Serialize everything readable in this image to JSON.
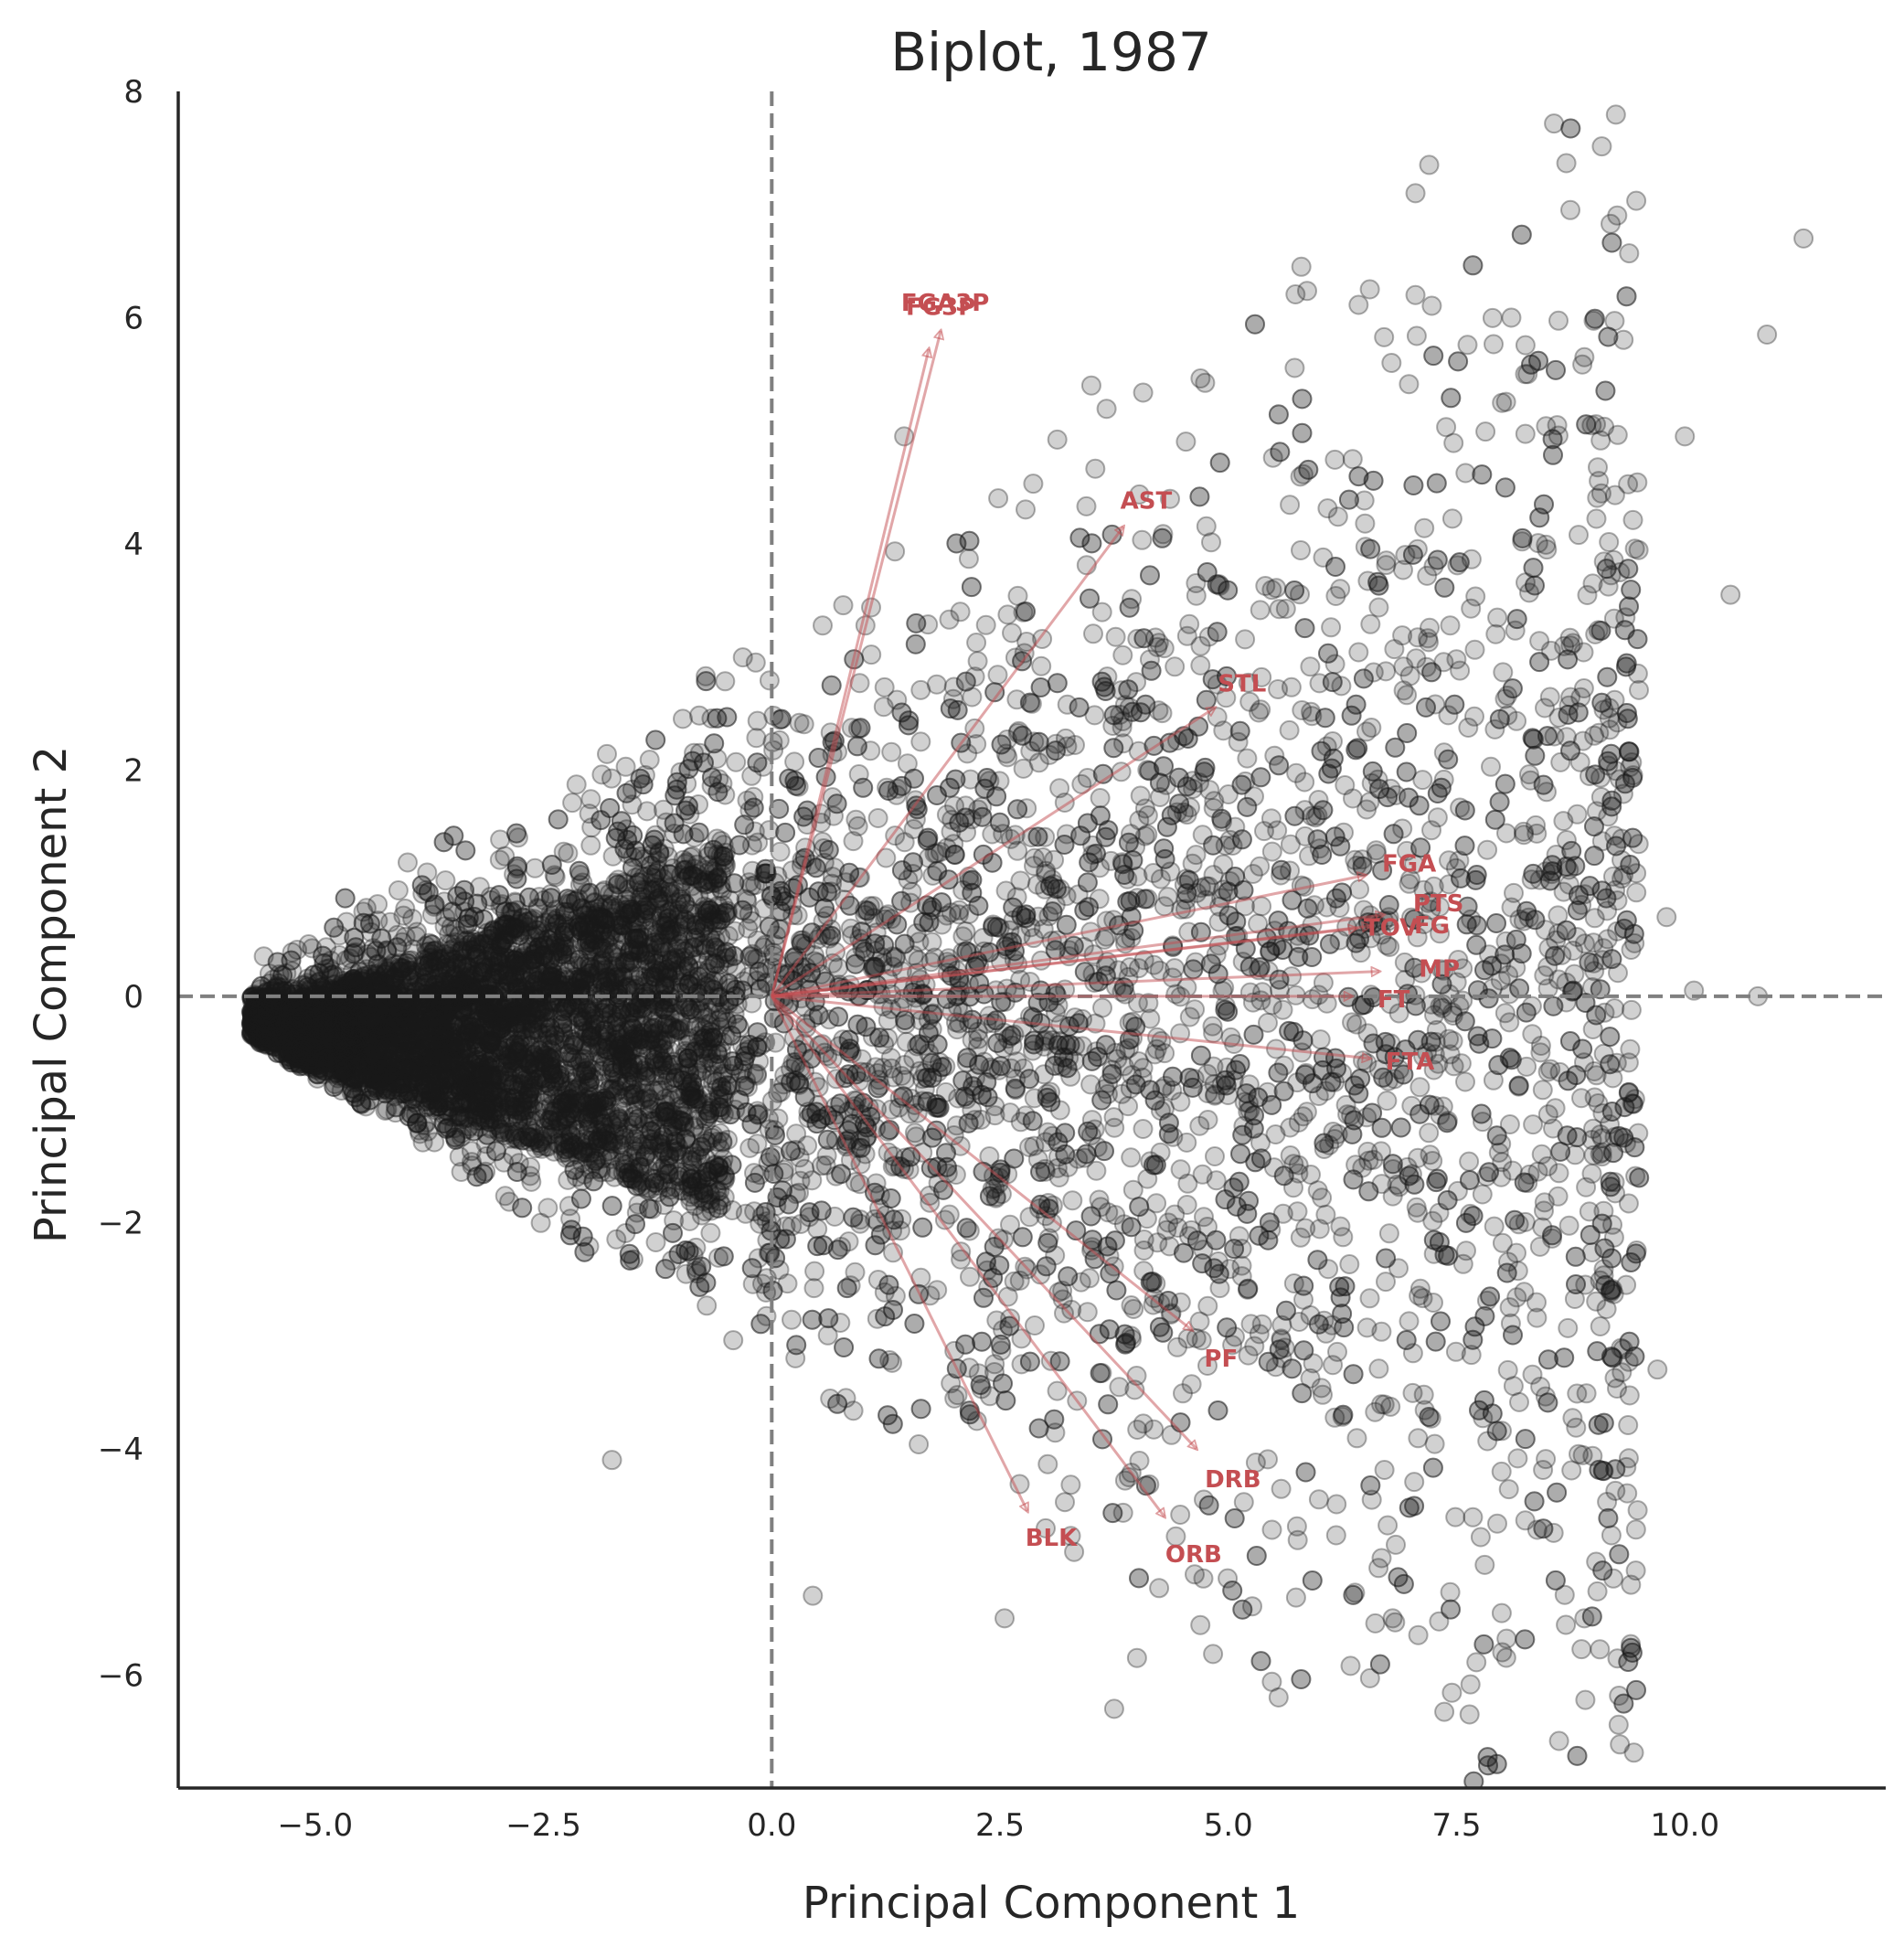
{
  "chart_data": {
    "type": "scatter",
    "title": "Biplot, 1987",
    "xlabel": "Principal Component 1",
    "ylabel": "Principal Component 2",
    "xlim": [
      -6.5,
      12.2
    ],
    "ylim": [
      -7,
      8
    ],
    "x_ticks": [
      -5.0,
      -2.5,
      0.0,
      2.5,
      5.0,
      7.5,
      10.0
    ],
    "x_tick_labels": [
      "−5.0",
      "−2.5",
      "0.0",
      "2.5",
      "5.0",
      "7.5",
      "10.0"
    ],
    "y_ticks": [
      -6,
      -4,
      -2,
      0,
      2,
      4,
      6,
      8
    ],
    "y_tick_labels": [
      "−6",
      "−4",
      "−2",
      "0",
      "2",
      "4",
      "6",
      "8"
    ],
    "grid": false,
    "reference_lines": {
      "x": 0,
      "y": 0,
      "style": "dashed",
      "color": "#808080"
    },
    "point_color": "#1a1a1a",
    "arrow_color": "#c44e52",
    "outlier_points": [
      {
        "x": 11.3,
        "y": 6.7
      },
      {
        "x": 10.9,
        "y": 5.85
      },
      {
        "x": 10.0,
        "y": 4.95
      },
      {
        "x": 10.5,
        "y": 3.55
      },
      {
        "x": 9.8,
        "y": 0.7
      },
      {
        "x": 10.1,
        "y": 0.05
      },
      {
        "x": 10.8,
        "y": 0.0
      },
      {
        "x": 9.7,
        "y": -3.3
      },
      {
        "x": 7.2,
        "y": 7.35
      },
      {
        "x": 7.05,
        "y": 7.1
      },
      {
        "x": 7.05,
        "y": 6.2
      },
      {
        "x": 5.8,
        "y": 6.45
      },
      {
        "x": 6.55,
        "y": 6.25
      },
      {
        "x": 8.1,
        "y": 6.0
      },
      {
        "x": 8.9,
        "y": 5.65
      },
      {
        "x": 3.5,
        "y": 5.4
      },
      {
        "x": 3.75,
        "y": -6.3
      },
      {
        "x": 4.0,
        "y": -5.85
      },
      {
        "x": 8.0,
        "y": -5.8
      },
      {
        "x": -1.75,
        "y": -4.1
      },
      {
        "x": 0.45,
        "y": -5.3
      },
      {
        "x": 2.55,
        "y": -5.5
      },
      {
        "x": 6.8,
        "y": -5.5
      },
      {
        "x": 8.9,
        "y": -5.5
      },
      {
        "x": 9.2,
        "y": -2.6
      },
      {
        "x": 9.35,
        "y": 3.35
      },
      {
        "x": 8.75,
        "y": 3.1
      },
      {
        "x": 1.45,
        "y": 4.95
      },
      {
        "x": -5.5,
        "y": 0.2
      }
    ],
    "loadings": [
      {
        "name": "FGA3P",
        "x": 1.72,
        "y": 5.72
      },
      {
        "name": "FG3P",
        "x": 1.85,
        "y": 5.88
      },
      {
        "name": "AST",
        "x": 3.85,
        "y": 4.15
      },
      {
        "name": "STL",
        "x": 4.85,
        "y": 2.55
      },
      {
        "name": "FGA",
        "x": 6.5,
        "y": 1.07
      },
      {
        "name": "PTS",
        "x": 6.7,
        "y": 0.72
      },
      {
        "name": "TOV",
        "x": 6.4,
        "y": 0.6
      },
      {
        "name": "FG",
        "x": 6.55,
        "y": 0.62
      },
      {
        "name": "MP",
        "x": 6.65,
        "y": 0.22
      },
      {
        "name": "FT",
        "x": 6.35,
        "y": 0.0
      },
      {
        "name": "FTA",
        "x": 6.55,
        "y": -0.55
      },
      {
        "name": "PF",
        "x": 4.6,
        "y": -2.95
      },
      {
        "name": "DRB",
        "x": 4.65,
        "y": -4.0
      },
      {
        "name": "ORB",
        "x": 4.3,
        "y": -4.6
      },
      {
        "name": "BLK",
        "x": 2.8,
        "y": -4.55
      }
    ]
  }
}
